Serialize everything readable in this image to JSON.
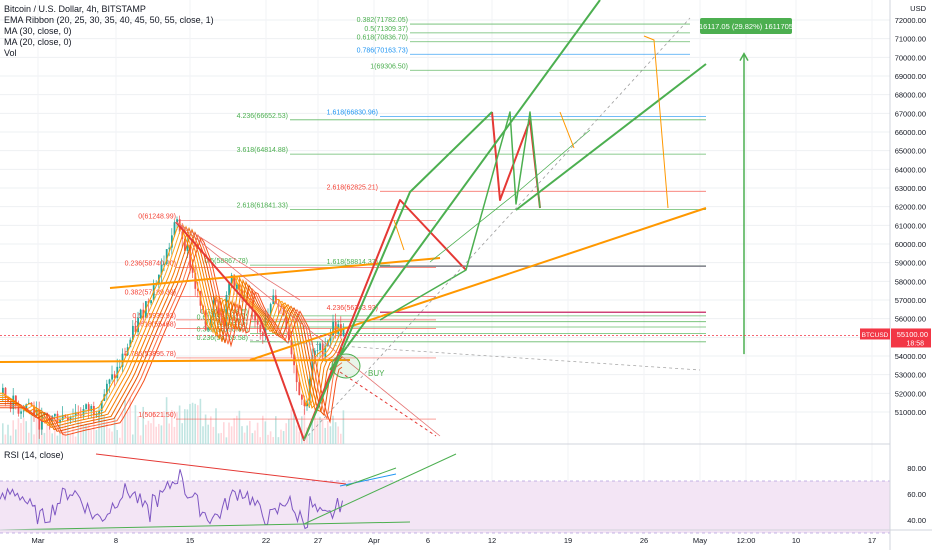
{
  "legend": {
    "title": "Bitcoin / U.S. Dollar, 4h, BITSTAMP",
    "indicators": [
      "EMA Ribbon (20, 25, 30, 35, 40, 45, 50, 55, close, 1)",
      "MA (30, close, 0)",
      "MA (20, close, 0)",
      "Vol"
    ]
  },
  "rsi_label": "RSI (14, close)",
  "currency": "USD",
  "symbol_badge": "BTCUSD",
  "price_badge": "55100.00",
  "countdown_badge": "18:58",
  "projection_label": "16117.05 (29.82%) 1611705",
  "buy_label": "BUY",
  "colors": {
    "up": "#26a69a",
    "down": "#ef5350",
    "green": "#4caf50",
    "red": "#e53935",
    "orange": "#ff9800",
    "fib_green": "#4caf50",
    "fib_red": "#f44336",
    "blue": "#2196f3",
    "purple": "#9c27b0",
    "rsi_fill": "#f3e5f5",
    "badge": "#f23645"
  },
  "chart_data": {
    "type": "candlestick",
    "price_axis": {
      "ticks": [
        "72000.00",
        "71000.00",
        "70000.00",
        "69000.00",
        "68000.00",
        "67000.00",
        "66000.00",
        "65000.00",
        "64000.00",
        "63000.00",
        "62000.00",
        "61000.00",
        "60000.00",
        "59000.00",
        "58000.00",
        "57000.00",
        "56000.00",
        "55000.00",
        "54000.00",
        "53000.00",
        "52000.00",
        "51000.00"
      ]
    },
    "time_axis": {
      "ticks": [
        "Mar",
        "8",
        "15",
        "22",
        "27",
        "Apr",
        "6",
        "12",
        "19",
        "26",
        "May",
        "12:00",
        "10",
        "17"
      ]
    },
    "rsi_axis": {
      "ticks": [
        "80.00",
        "60.00",
        "40.00"
      ]
    },
    "fib_left": [
      {
        "label": "0(61248.99)",
        "price": 61248.99
      },
      {
        "label": "0.236(58740.90)",
        "price": 58740.9
      },
      {
        "label": "0.382(57189.39)",
        "price": 57189.39
      },
      {
        "label": "0.5(55935.93)",
        "price": 55935.93
      },
      {
        "label": "0.618(55468)",
        "price": 55468
      },
      {
        "label": "0.786(53895.78)",
        "price": 53895.78
      },
      {
        "label": "1(50621.50)",
        "price": 50621.5
      }
    ],
    "fib_upper": [
      {
        "label": "0.382(71782.05)",
        "price": 71782.05
      },
      {
        "label": "0.5(71309.37)",
        "price": 71309.37
      },
      {
        "label": "0.618(70836.70)",
        "price": 70836.7
      },
      {
        "label": "0.786(70163.73)",
        "price": 70163.73
      },
      {
        "label": "1(69306.50)",
        "price": 69306.5
      },
      {
        "label": "1.618(66830.96)",
        "price": 66830.96
      },
      {
        "label": "4.236(66652.53)",
        "price": 66652.53
      },
      {
        "label": "3.618(64814.88)",
        "price": 64814.88
      },
      {
        "label": "2.618(62825.21)",
        "price": 62825.21
      },
      {
        "label": "2.618(61841.33)",
        "price": 61841.33
      },
      {
        "label": "1.618(58814.37)",
        "price": 58814.37
      },
      {
        "label": "0.5(58867.78)",
        "price": 58867.78
      },
      {
        "label": "4.236(56343.93)",
        "price": 56343.93
      },
      {
        "label": "0.786(56148.5)",
        "price": 56148.5
      },
      {
        "label": "0.618(55838.23)",
        "price": 55838.23
      },
      {
        "label": "0.5(55553.55)",
        "price": 55553.55
      },
      {
        "label": "0.382(55198.87)",
        "price": 55198.87
      },
      {
        "label": "0.236(54759.58)",
        "price": 54759.58
      }
    ],
    "current_price": 55100.0,
    "projection_move": 16117.05,
    "projection_pct": 29.82
  }
}
